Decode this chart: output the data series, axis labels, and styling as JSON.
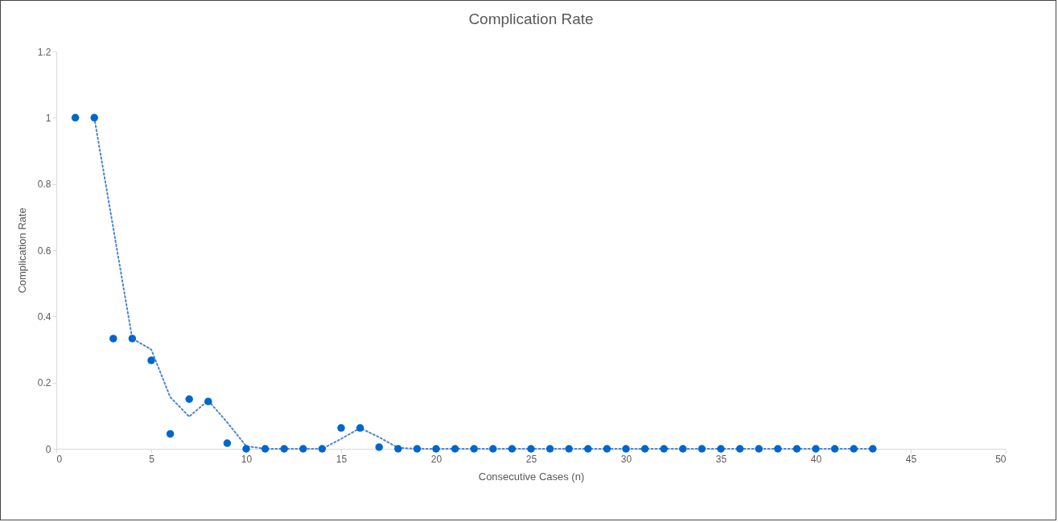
{
  "chart_data": {
    "type": "scatter",
    "title": "Complication Rate",
    "xlabel": "Consecutive Cases (n)",
    "ylabel": "Complication Rate",
    "xlim": [
      0,
      50
    ],
    "xticks": [
      0,
      5,
      10,
      15,
      20,
      25,
      30,
      35,
      40,
      45,
      50
    ],
    "ylim": [
      0,
      1.2
    ],
    "yticks": [
      0,
      0.2,
      0.4,
      0.6,
      0.8,
      1,
      1.2
    ],
    "grid": false,
    "series": [
      {
        "marker": "circle",
        "color": "#0066cc",
        "x": [
          1,
          2,
          3,
          4,
          5,
          6,
          7,
          8,
          9,
          10,
          11,
          12,
          13,
          14,
          15,
          16,
          17,
          18,
          19,
          20,
          21,
          22,
          23,
          24,
          25,
          26,
          27,
          28,
          29,
          30,
          31,
          32,
          33,
          34,
          35,
          36,
          37,
          38,
          39,
          40,
          41,
          42,
          43
        ],
        "values": [
          1,
          1,
          0.333,
          0.333,
          0.267,
          0.045,
          0.15,
          0.143,
          0.017,
          0,
          0,
          0,
          0,
          0,
          0.063,
          0.063,
          0.005,
          0,
          0,
          0,
          0,
          0,
          0,
          0,
          0,
          0,
          0,
          0,
          0,
          0,
          0,
          0,
          0,
          0,
          0,
          0,
          0,
          0,
          0,
          0,
          0,
          0,
          0
        ]
      },
      {
        "type": "line",
        "marker": "none",
        "color": "#4a86d0",
        "line_style": "dotted",
        "x": [
          2,
          3,
          4,
          5,
          6,
          7,
          8,
          9,
          10,
          11,
          12,
          13,
          14,
          15,
          16,
          17,
          18,
          19,
          20,
          21,
          22,
          23,
          24,
          25,
          26,
          27,
          28,
          29,
          30,
          31,
          32,
          33,
          34,
          35,
          36,
          37,
          38,
          39,
          40,
          41,
          42,
          43
        ],
        "values": [
          1,
          0.667,
          0.333,
          0.3,
          0.156,
          0.097,
          0.146,
          0.08,
          0.008,
          0,
          0,
          0,
          0,
          0.03,
          0.063,
          0.035,
          0.003,
          0,
          0,
          0,
          0,
          0,
          0,
          0,
          0,
          0,
          0,
          0,
          0,
          0,
          0,
          0,
          0,
          0,
          0,
          0,
          0,
          0,
          0,
          0,
          0,
          0
        ]
      }
    ]
  }
}
